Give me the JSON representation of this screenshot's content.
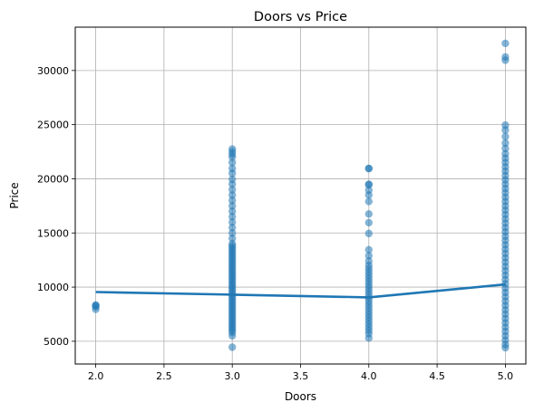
{
  "chart_data": {
    "type": "scatter",
    "title": "Doors vs Price",
    "xlabel": "Doors",
    "ylabel": "Price",
    "xlim": [
      1.85,
      5.15
    ],
    "ylim": [
      2900,
      34000
    ],
    "xticks": [
      2.0,
      2.5,
      3.0,
      3.5,
      4.0,
      4.5,
      5.0
    ],
    "xtick_labels": [
      "2.0",
      "2.5",
      "3.0",
      "3.5",
      "4.0",
      "4.5",
      "5.0"
    ],
    "yticks": [
      5000,
      10000,
      15000,
      20000,
      25000,
      30000
    ],
    "ytick_labels": [
      "5000",
      "10000",
      "15000",
      "20000",
      "25000",
      "30000"
    ],
    "grid": true,
    "colors": {
      "points": "#1f77b4",
      "line": "#1f77b4",
      "grid": "#b0b0b0"
    },
    "point_groups": [
      {
        "x": 2,
        "y": [
          7950,
          8200,
          8300,
          8350
        ]
      },
      {
        "x": 3,
        "y": [
          4450,
          5500,
          5800,
          6000,
          6200,
          6400,
          6600,
          6800,
          7000,
          7200,
          7400,
          7600,
          7800,
          8000,
          8200,
          8400,
          8600,
          8800,
          9000,
          9200,
          9400,
          9600,
          9800,
          10000,
          10200,
          10400,
          10600,
          10800,
          11000,
          11200,
          11400,
          11600,
          11800,
          12000,
          12200,
          12400,
          12600,
          12800,
          13000,
          13200,
          13400,
          13600,
          13800,
          14000,
          14500,
          15000,
          15500,
          16000,
          16500,
          17000,
          17500,
          18000,
          18500,
          19000,
          19500,
          19950,
          20500,
          20950,
          21500,
          22000,
          22250,
          22500,
          22750
        ]
      },
      {
        "x": 4,
        "y": [
          5300,
          5700,
          6000,
          6300,
          6600,
          6900,
          7200,
          7500,
          7800,
          8100,
          8400,
          8700,
          9000,
          9300,
          9600,
          9900,
          10200,
          10500,
          10800,
          11100,
          11400,
          11700,
          12000,
          12400,
          12900,
          13450,
          14950,
          15950,
          16750,
          17900,
          18500,
          18950,
          19450,
          19500,
          20950,
          20950
        ]
      },
      {
        "x": 5,
        "y": [
          4400,
          4700,
          5100,
          5500,
          5900,
          6300,
          6700,
          7100,
          7500,
          7900,
          8300,
          8700,
          9100,
          9500,
          9900,
          10300,
          10700,
          11100,
          11500,
          11900,
          12300,
          12700,
          13100,
          13500,
          13900,
          14300,
          14700,
          15100,
          15500,
          15900,
          16300,
          16700,
          17100,
          17500,
          17900,
          18300,
          18700,
          19100,
          19500,
          19900,
          20300,
          20700,
          21100,
          21500,
          21900,
          22300,
          22800,
          23300,
          23900,
          24500,
          24950,
          30950,
          31250,
          32500
        ]
      }
    ],
    "trend_line": {
      "x": [
        2,
        3,
        4,
        5
      ],
      "y": [
        9550,
        9300,
        9050,
        10250
      ]
    }
  }
}
